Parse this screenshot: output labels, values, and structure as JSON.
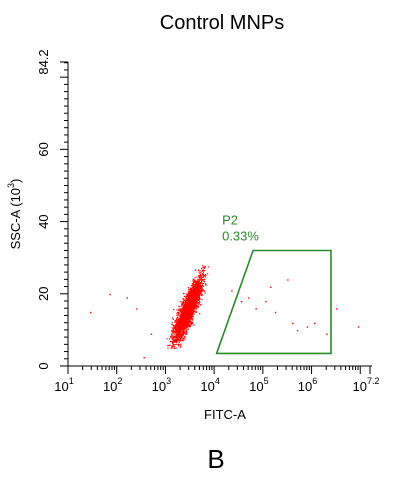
{
  "chart_data": {
    "type": "scatter",
    "title": "Control MNPs",
    "xlabel": "FITC-A",
    "ylabel": "SSC-A (10",
    "ylabel_exp": "3",
    "ylabel_close": ")",
    "x_scale": "log10",
    "xlim": [
      1,
      7.2
    ],
    "ylim": [
      0,
      84.2
    ],
    "x_ticks": [
      {
        "base": "10",
        "exp": "1"
      },
      {
        "base": "10",
        "exp": "2"
      },
      {
        "base": "10",
        "exp": "3"
      },
      {
        "base": "10",
        "exp": "4"
      },
      {
        "base": "10",
        "exp": "5"
      },
      {
        "base": "10",
        "exp": "6"
      },
      {
        "base": "10",
        "exp": "7.2"
      }
    ],
    "y_ticks": [
      "0",
      "20",
      "40",
      "60",
      "84.2"
    ],
    "point_color": "#ff0000",
    "gate_color": "#2a8a2a",
    "cluster": {
      "center_log_x": 3.45,
      "center_y": 15.5,
      "count": 3000,
      "y_range": [
        5,
        28
      ],
      "correlation": "positive"
    },
    "gate": {
      "name": "P2",
      "percent": "0.33%",
      "vertices_logx_y": [
        [
          4.05,
          3.5
        ],
        [
          4.8,
          32
        ],
        [
          6.4,
          32
        ],
        [
          6.4,
          3.5
        ]
      ]
    },
    "outliers_logx_y": [
      [
        1.45,
        15
      ],
      [
        1.85,
        20
      ],
      [
        2.2,
        19
      ],
      [
        2.4,
        16
      ],
      [
        2.55,
        2.5
      ],
      [
        2.7,
        9
      ],
      [
        4.3,
        14
      ],
      [
        4.35,
        21
      ],
      [
        4.55,
        18
      ],
      [
        4.7,
        19
      ],
      [
        4.85,
        16
      ],
      [
        5.05,
        18
      ],
      [
        5.15,
        22
      ],
      [
        5.25,
        15
      ],
      [
        5.5,
        24
      ],
      [
        5.6,
        12
      ],
      [
        5.7,
        10
      ],
      [
        5.9,
        11
      ],
      [
        6.05,
        12
      ],
      [
        6.3,
        9
      ],
      [
        6.5,
        16
      ],
      [
        6.95,
        11
      ]
    ]
  },
  "panel_label": "B"
}
